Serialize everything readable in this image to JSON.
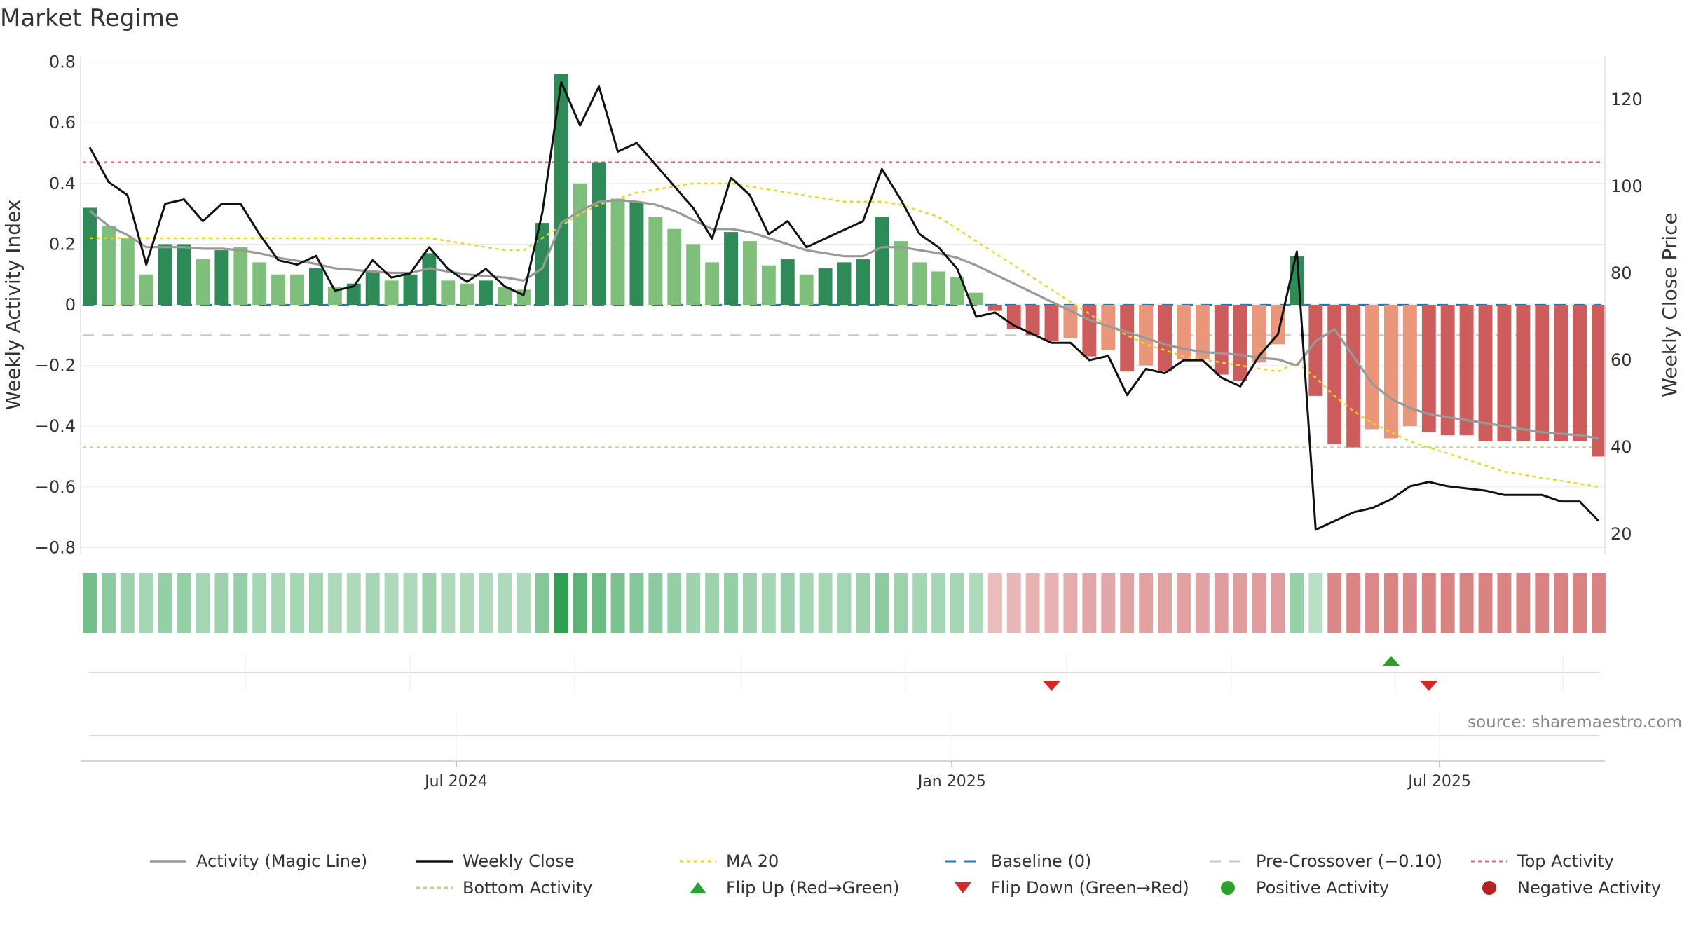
{
  "title": "Market Regime",
  "source": "source: sharemaestro.com",
  "colors": {
    "dark_green": "#2e8b57",
    "light_green": "#7fbf7b",
    "dark_red": "#cd5c5c",
    "light_red": "#e9967a",
    "magic": "#999999",
    "close": "#111111",
    "ma20": "#e6d82a",
    "baseline": "#1f77b4",
    "precross": "#c8c8c8",
    "top": "#e06c7a",
    "bottom": "#b5d98a",
    "flip_up": "#2ca02c",
    "flip_down": "#d62728"
  },
  "chart_data": {
    "type": "bar",
    "title": "Market Regime",
    "ylabel": "Weekly Activity Index",
    "y2label": "Weekly Close Price",
    "ylim": [
      -0.82,
      0.82
    ],
    "y2lim": [
      15.5,
      130
    ],
    "yticks": [
      0.8,
      0.6,
      0.4,
      0.2,
      0,
      -0.2,
      -0.4,
      -0.6,
      -0.8
    ],
    "ytick_labels": [
      "0.8",
      "0.6",
      "0.4",
      "0.2",
      "0",
      "−0.2",
      "−0.4",
      "−0.6",
      "−0.8"
    ],
    "y2ticks": [
      120,
      100,
      80,
      60,
      40,
      20
    ],
    "y2tick_labels": [
      "120",
      "100",
      "80",
      "60",
      "40",
      "20"
    ],
    "x": [
      "2024-02-16",
      "2024-02-23",
      "2024-03-01",
      "2024-03-08",
      "2024-03-15",
      "2024-03-22",
      "2024-03-29",
      "2024-04-05",
      "2024-04-12",
      "2024-04-19",
      "2024-04-26",
      "2024-05-03",
      "2024-05-10",
      "2024-05-17",
      "2024-05-24",
      "2024-05-31",
      "2024-06-07",
      "2024-06-14",
      "2024-06-21",
      "2024-06-28",
      "2024-07-05",
      "2024-07-12",
      "2024-07-19",
      "2024-07-26",
      "2024-08-02",
      "2024-08-09",
      "2024-08-16",
      "2024-08-23",
      "2024-08-30",
      "2024-09-06",
      "2024-09-13",
      "2024-09-20",
      "2024-09-27",
      "2024-10-04",
      "2024-10-11",
      "2024-10-18",
      "2024-10-25",
      "2024-11-01",
      "2024-11-08",
      "2024-11-15",
      "2024-11-22",
      "2024-11-29",
      "2024-12-06",
      "2024-12-13",
      "2024-12-20",
      "2024-12-27",
      "2025-01-03",
      "2025-01-10",
      "2025-01-17",
      "2025-01-24",
      "2025-01-31",
      "2025-02-07",
      "2025-02-14",
      "2025-02-21",
      "2025-02-28",
      "2025-03-07",
      "2025-03-14",
      "2025-03-21",
      "2025-03-28",
      "2025-04-04",
      "2025-04-11",
      "2025-04-18",
      "2025-04-25",
      "2025-05-02",
      "2025-05-09",
      "2025-05-16",
      "2025-05-23",
      "2025-05-30",
      "2025-06-06",
      "2025-06-13",
      "2025-06-20",
      "2025-06-27",
      "2025-07-04",
      "2025-07-11",
      "2025-07-18",
      "2025-07-25",
      "2025-08-01",
      "2025-08-08",
      "2025-08-15",
      "2025-08-22",
      "2025-08-29"
    ],
    "xticks": [
      {
        "date": "2024-07-01",
        "label": "Jul 2024"
      },
      {
        "date": "2025-01-01",
        "label": "Jan 2025"
      },
      {
        "date": "2025-07-01",
        "label": "Jul 2025"
      }
    ],
    "series": [
      {
        "name": "Weekly Activity Index",
        "values": [
          0.32,
          0.26,
          0.22,
          0.1,
          0.2,
          0.2,
          0.15,
          0.18,
          0.19,
          0.14,
          0.1,
          0.1,
          0.12,
          0.06,
          0.07,
          0.11,
          0.08,
          0.1,
          0.17,
          0.08,
          0.07,
          0.08,
          0.06,
          0.05,
          0.27,
          0.76,
          0.4,
          0.47,
          0.35,
          0.34,
          0.29,
          0.25,
          0.2,
          0.14,
          0.24,
          0.21,
          0.13,
          0.15,
          0.1,
          0.12,
          0.14,
          0.15,
          0.29,
          0.21,
          0.14,
          0.11,
          0.09,
          0.04,
          -0.02,
          -0.08,
          -0.1,
          -0.12,
          -0.11,
          -0.17,
          -0.15,
          -0.22,
          -0.2,
          -0.22,
          -0.18,
          -0.18,
          -0.23,
          -0.25,
          -0.19,
          -0.13,
          0.16,
          -0.3,
          -0.46,
          -0.47,
          -0.41,
          -0.44,
          -0.4,
          -0.42,
          -0.43,
          -0.43,
          -0.45,
          -0.45,
          -0.45,
          -0.45,
          -0.45,
          -0.45,
          -0.5
        ],
        "shades": [
          "d",
          "l",
          "l",
          "l",
          "d",
          "d",
          "l",
          "d",
          "l",
          "l",
          "l",
          "l",
          "d",
          "l",
          "d",
          "d",
          "l",
          "d",
          "d",
          "l",
          "l",
          "d",
          "l",
          "l",
          "d",
          "d",
          "l",
          "d",
          "l",
          "d",
          "l",
          "l",
          "l",
          "l",
          "d",
          "l",
          "l",
          "d",
          "l",
          "d",
          "d",
          "d",
          "d",
          "l",
          "l",
          "l",
          "l",
          "l",
          "d",
          "d",
          "d",
          "d",
          "l",
          "d",
          "l",
          "d",
          "l",
          "d",
          "l",
          "l",
          "d",
          "d",
          "l",
          "l",
          "d",
          "d",
          "d",
          "d",
          "l",
          "l",
          "l",
          "d",
          "d",
          "d",
          "d",
          "d",
          "d",
          "d",
          "d",
          "d",
          "d"
        ]
      },
      {
        "name": "Activity (Magic Line)",
        "values": [
          0.31,
          0.26,
          0.23,
          0.19,
          0.19,
          0.19,
          0.185,
          0.185,
          0.18,
          0.17,
          0.155,
          0.145,
          0.135,
          0.12,
          0.115,
          0.11,
          0.105,
          0.105,
          0.12,
          0.11,
          0.1,
          0.095,
          0.09,
          0.08,
          0.12,
          0.27,
          0.31,
          0.34,
          0.345,
          0.34,
          0.33,
          0.31,
          0.28,
          0.25,
          0.25,
          0.24,
          0.22,
          0.2,
          0.18,
          0.17,
          0.16,
          0.16,
          0.19,
          0.19,
          0.18,
          0.17,
          0.155,
          0.13,
          0.1,
          0.07,
          0.04,
          0.01,
          -0.02,
          -0.05,
          -0.07,
          -0.09,
          -0.11,
          -0.13,
          -0.145,
          -0.155,
          -0.16,
          -0.165,
          -0.175,
          -0.18,
          -0.2,
          -0.12,
          -0.08,
          -0.17,
          -0.26,
          -0.31,
          -0.34,
          -0.36,
          -0.37,
          -0.38,
          -0.39,
          -0.4,
          -0.41,
          -0.42,
          -0.425,
          -0.43,
          -0.44
        ]
      },
      {
        "name": "Weekly Close",
        "values": [
          109,
          101,
          98,
          82,
          96,
          97,
          92,
          96,
          96,
          89,
          83,
          82,
          84,
          76,
          77,
          83,
          79,
          80,
          86,
          81,
          78,
          81,
          77,
          75,
          94,
          124,
          114,
          123,
          108,
          110,
          105,
          100,
          95,
          88,
          102,
          98,
          89,
          92,
          86,
          88,
          90,
          92,
          104,
          97,
          89,
          86,
          81,
          70,
          71,
          68,
          66,
          64,
          64,
          60,
          61,
          52,
          58,
          57,
          60,
          60,
          56,
          54,
          61,
          66,
          85,
          21,
          23,
          25,
          26,
          28,
          31,
          32,
          31,
          30.5,
          30,
          29,
          29,
          29,
          27.5,
          27.5,
          23
        ]
      },
      {
        "name": "MA 20",
        "values": [
          0.22,
          0.22,
          0.22,
          0.22,
          0.22,
          0.22,
          0.22,
          0.22,
          0.22,
          0.22,
          0.22,
          0.22,
          0.22,
          0.22,
          0.22,
          0.22,
          0.22,
          0.22,
          0.22,
          0.21,
          0.2,
          0.19,
          0.18,
          0.18,
          0.22,
          0.26,
          0.3,
          0.33,
          0.35,
          0.37,
          0.38,
          0.39,
          0.4,
          0.4,
          0.4,
          0.39,
          0.38,
          0.37,
          0.36,
          0.35,
          0.34,
          0.34,
          0.34,
          0.33,
          0.31,
          0.29,
          0.25,
          0.21,
          0.17,
          0.13,
          0.09,
          0.05,
          0.01,
          -0.03,
          -0.07,
          -0.1,
          -0.13,
          -0.15,
          -0.17,
          -0.18,
          -0.19,
          -0.2,
          -0.21,
          -0.22,
          -0.19,
          -0.24,
          -0.3,
          -0.35,
          -0.39,
          -0.42,
          -0.45,
          -0.47,
          -0.49,
          -0.51,
          -0.53,
          -0.55,
          -0.56,
          -0.57,
          -0.58,
          -0.59,
          -0.6
        ]
      },
      {
        "name": "Baseline (0)",
        "value": 0
      },
      {
        "name": "Pre-Crossover (−0.10)",
        "value": -0.1
      },
      {
        "name": "Top Activity",
        "value": 0.47
      },
      {
        "name": "Bottom Activity",
        "value": -0.47
      }
    ],
    "strip_intensity": [
      0.6,
      0.45,
      0.35,
      0.3,
      0.4,
      0.4,
      0.3,
      0.35,
      0.4,
      0.3,
      0.3,
      0.3,
      0.3,
      0.25,
      0.25,
      0.3,
      0.25,
      0.25,
      0.35,
      0.25,
      0.25,
      0.25,
      0.25,
      0.25,
      0.5,
      1.0,
      0.75,
      0.65,
      0.55,
      0.5,
      0.45,
      0.4,
      0.35,
      0.35,
      0.4,
      0.35,
      0.3,
      0.35,
      0.3,
      0.3,
      0.3,
      0.35,
      0.45,
      0.35,
      0.3,
      0.3,
      0.3,
      0.25,
      0.25,
      0.3,
      0.35,
      0.35,
      0.4,
      0.45,
      0.45,
      0.5,
      0.5,
      0.5,
      0.5,
      0.5,
      0.55,
      0.55,
      0.55,
      0.55,
      0.4,
      0.2,
      0.75,
      0.8,
      0.75,
      0.8,
      0.75,
      0.8,
      0.8,
      0.8,
      0.8,
      0.8,
      0.8,
      0.8,
      0.8,
      0.8,
      0.8
    ],
    "strip_sign": [
      "+",
      "+",
      "+",
      "+",
      "+",
      "+",
      "+",
      "+",
      "+",
      "+",
      "+",
      "+",
      "+",
      "+",
      "+",
      "+",
      "+",
      "+",
      "+",
      "+",
      "+",
      "+",
      "+",
      "+",
      "+",
      "+",
      "+",
      "+",
      "+",
      "+",
      "+",
      "+",
      "+",
      "+",
      "+",
      "+",
      "+",
      "+",
      "+",
      "+",
      "+",
      "+",
      "+",
      "+",
      "+",
      "+",
      "+",
      "+",
      "-",
      "-",
      "-",
      "-",
      "-",
      "-",
      "-",
      "-",
      "-",
      "-",
      "-",
      "-",
      "-",
      "-",
      "-",
      "-",
      "+",
      "+",
      "-",
      "-",
      "-",
      "-",
      "-",
      "-",
      "-",
      "-",
      "-",
      "-",
      "-",
      "-",
      "-",
      "-",
      "-"
    ],
    "flip_up": [
      "2025-06-13"
    ],
    "flip_down": [
      "2025-02-07",
      "2025-06-27"
    ],
    "legend": [
      "Activity (Magic Line)",
      "Weekly Close",
      "MA 20",
      "Baseline (0)",
      "Pre-Crossover (−0.10)",
      "Top Activity",
      "Bottom Activity",
      "Flip Up (Red→Green)",
      "Flip Down (Green→Red)",
      "Positive Activity",
      "Negative Activity"
    ],
    "legend_placement": "bottom"
  }
}
